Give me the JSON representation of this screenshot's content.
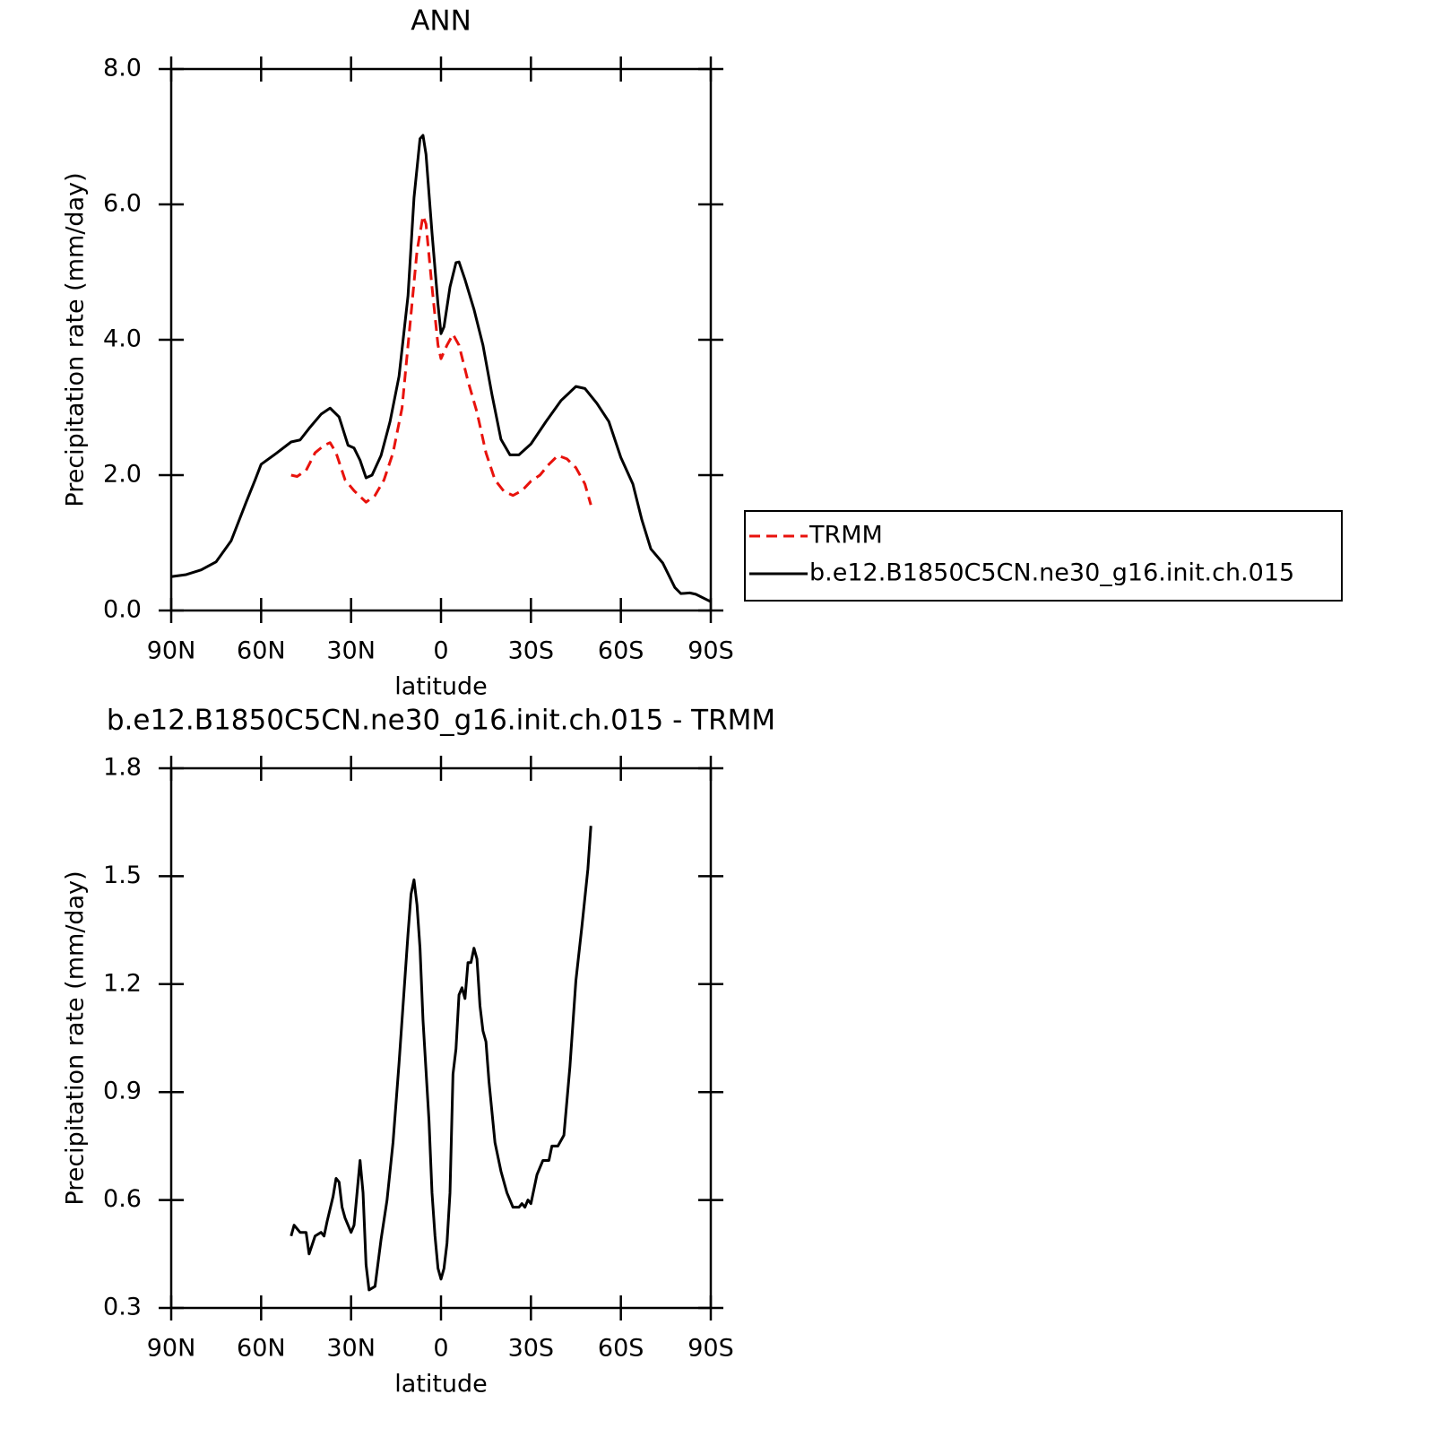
{
  "chart_data": [
    {
      "type": "line",
      "title": "ANN",
      "xlabel": "latitude",
      "ylabel": "Precipitation rate (mm/day)",
      "xlim": [
        90,
        -90
      ],
      "xticks": [
        {
          "value": 90,
          "label": "90N"
        },
        {
          "value": 60,
          "label": "60N"
        },
        {
          "value": 30,
          "label": "30N"
        },
        0,
        {
          "value": -30,
          "label": "30S"
        },
        {
          "value": -60,
          "label": "60S"
        },
        {
          "value": -90,
          "label": "90S"
        }
      ],
      "ylim": [
        0,
        8
      ],
      "yticks": [
        {
          "value": 0,
          "label": "0.0"
        },
        {
          "value": 2,
          "label": "2.0"
        },
        {
          "value": 4,
          "label": "4.0"
        },
        {
          "value": 6,
          "label": "6.0"
        },
        {
          "value": 8,
          "label": "8.0"
        }
      ],
      "legend": "outside right",
      "series": [
        {
          "name": "TRMM",
          "color": "#e8120c",
          "linestyle": "dashed",
          "x": [
            50,
            48,
            45,
            42,
            39,
            37,
            35,
            32,
            29,
            25,
            22,
            19,
            16,
            13,
            10,
            8,
            6,
            5,
            3,
            1,
            0,
            -2,
            -4,
            -6,
            -9,
            -12,
            -15,
            -18,
            -21,
            -24,
            -27,
            -30,
            -33,
            -36,
            -39,
            -42,
            -45,
            -48,
            -50
          ],
          "values": [
            2.0,
            1.98,
            2.07,
            2.33,
            2.44,
            2.48,
            2.33,
            1.93,
            1.77,
            1.6,
            1.7,
            1.93,
            2.33,
            2.99,
            4.38,
            5.31,
            5.83,
            5.71,
            4.78,
            3.92,
            3.72,
            3.92,
            4.08,
            3.92,
            3.39,
            2.93,
            2.33,
            1.93,
            1.76,
            1.7,
            1.77,
            1.91,
            2.0,
            2.16,
            2.29,
            2.24,
            2.11,
            1.87,
            1.56
          ]
        },
        {
          "name": "b.e12.B1850C5CN.ne30_g16.init.ch.015",
          "color": "#000000",
          "linestyle": "solid",
          "x": [
            90,
            85,
            80,
            75,
            70,
            65,
            62,
            60,
            55,
            50,
            47,
            44,
            40,
            37,
            34,
            31,
            29,
            27,
            25,
            23,
            20,
            17,
            14,
            11,
            9,
            7,
            6,
            5,
            3,
            1,
            0,
            -1,
            -3,
            -5,
            -6,
            -8,
            -11,
            -14,
            -17,
            -20,
            -23,
            -26,
            -30,
            -35,
            -40,
            -45,
            -48,
            -52,
            -56,
            -60,
            -64,
            -67,
            -70,
            -74,
            -78,
            -80,
            -83,
            -85,
            -90
          ],
          "values": [
            0.5,
            0.53,
            0.6,
            0.72,
            1.03,
            1.6,
            1.93,
            2.16,
            2.32,
            2.49,
            2.52,
            2.69,
            2.9,
            2.99,
            2.86,
            2.44,
            2.4,
            2.22,
            1.96,
            2.0,
            2.29,
            2.79,
            3.46,
            4.65,
            6.1,
            6.97,
            7.02,
            6.74,
            5.58,
            4.52,
            4.09,
            4.19,
            4.78,
            5.14,
            5.15,
            4.89,
            4.45,
            3.92,
            3.19,
            2.53,
            2.3,
            2.3,
            2.46,
            2.79,
            3.1,
            3.31,
            3.28,
            3.06,
            2.79,
            2.26,
            1.87,
            1.34,
            0.91,
            0.7,
            0.34,
            0.25,
            0.26,
            0.24,
            0.13
          ]
        }
      ]
    },
    {
      "type": "line",
      "title": "b.e12.B1850C5CN.ne30_g16.init.ch.015 - TRMM",
      "xlabel": "latitude",
      "ylabel": "Precipitation rate (mm/day)",
      "xlim": [
        90,
        -90
      ],
      "xticks": [
        {
          "value": 90,
          "label": "90N"
        },
        {
          "value": 60,
          "label": "60N"
        },
        {
          "value": 30,
          "label": "30N"
        },
        0,
        {
          "value": -30,
          "label": "30S"
        },
        {
          "value": -60,
          "label": "60S"
        },
        {
          "value": -90,
          "label": "90S"
        }
      ],
      "ylim": [
        0.3,
        1.8
      ],
      "yticks": [
        0.3,
        0.6,
        0.9,
        1.2,
        1.5,
        1.8
      ],
      "series": [
        {
          "color": "#000000",
          "linestyle": "solid",
          "x": [
            50,
            49,
            47,
            45,
            44,
            42,
            40,
            39,
            38,
            36,
            35,
            34,
            33,
            32,
            30,
            29,
            27,
            26,
            25,
            24,
            22,
            20,
            18,
            16,
            14,
            12,
            11,
            10,
            9,
            8,
            7,
            6,
            4,
            3,
            2,
            1,
            0,
            -1,
            -2,
            -3,
            -4,
            -5,
            -6,
            -7,
            -8,
            -9,
            -10,
            -11,
            -12,
            -13,
            -14,
            -15,
            -16,
            -18,
            -20,
            -22,
            -24,
            -26,
            -27,
            -28,
            -29,
            -30,
            -32,
            -34,
            -36,
            -37,
            -39,
            -41,
            -43,
            -45,
            -47,
            -49,
            -50
          ],
          "values": [
            0.5,
            0.53,
            0.51,
            0.51,
            0.45,
            0.5,
            0.51,
            0.5,
            0.54,
            0.61,
            0.66,
            0.65,
            0.58,
            0.55,
            0.51,
            0.53,
            0.71,
            0.62,
            0.42,
            0.35,
            0.36,
            0.49,
            0.6,
            0.76,
            0.98,
            1.22,
            1.34,
            1.45,
            1.49,
            1.42,
            1.3,
            1.1,
            0.82,
            0.62,
            0.5,
            0.41,
            0.38,
            0.41,
            0.48,
            0.62,
            0.95,
            1.02,
            1.17,
            1.19,
            1.16,
            1.26,
            1.26,
            1.3,
            1.27,
            1.14,
            1.07,
            1.04,
            0.93,
            0.76,
            0.68,
            0.62,
            0.58,
            0.58,
            0.59,
            0.58,
            0.6,
            0.59,
            0.67,
            0.71,
            0.71,
            0.75,
            0.75,
            0.78,
            0.97,
            1.21,
            1.36,
            1.52,
            1.64
          ]
        }
      ]
    }
  ]
}
